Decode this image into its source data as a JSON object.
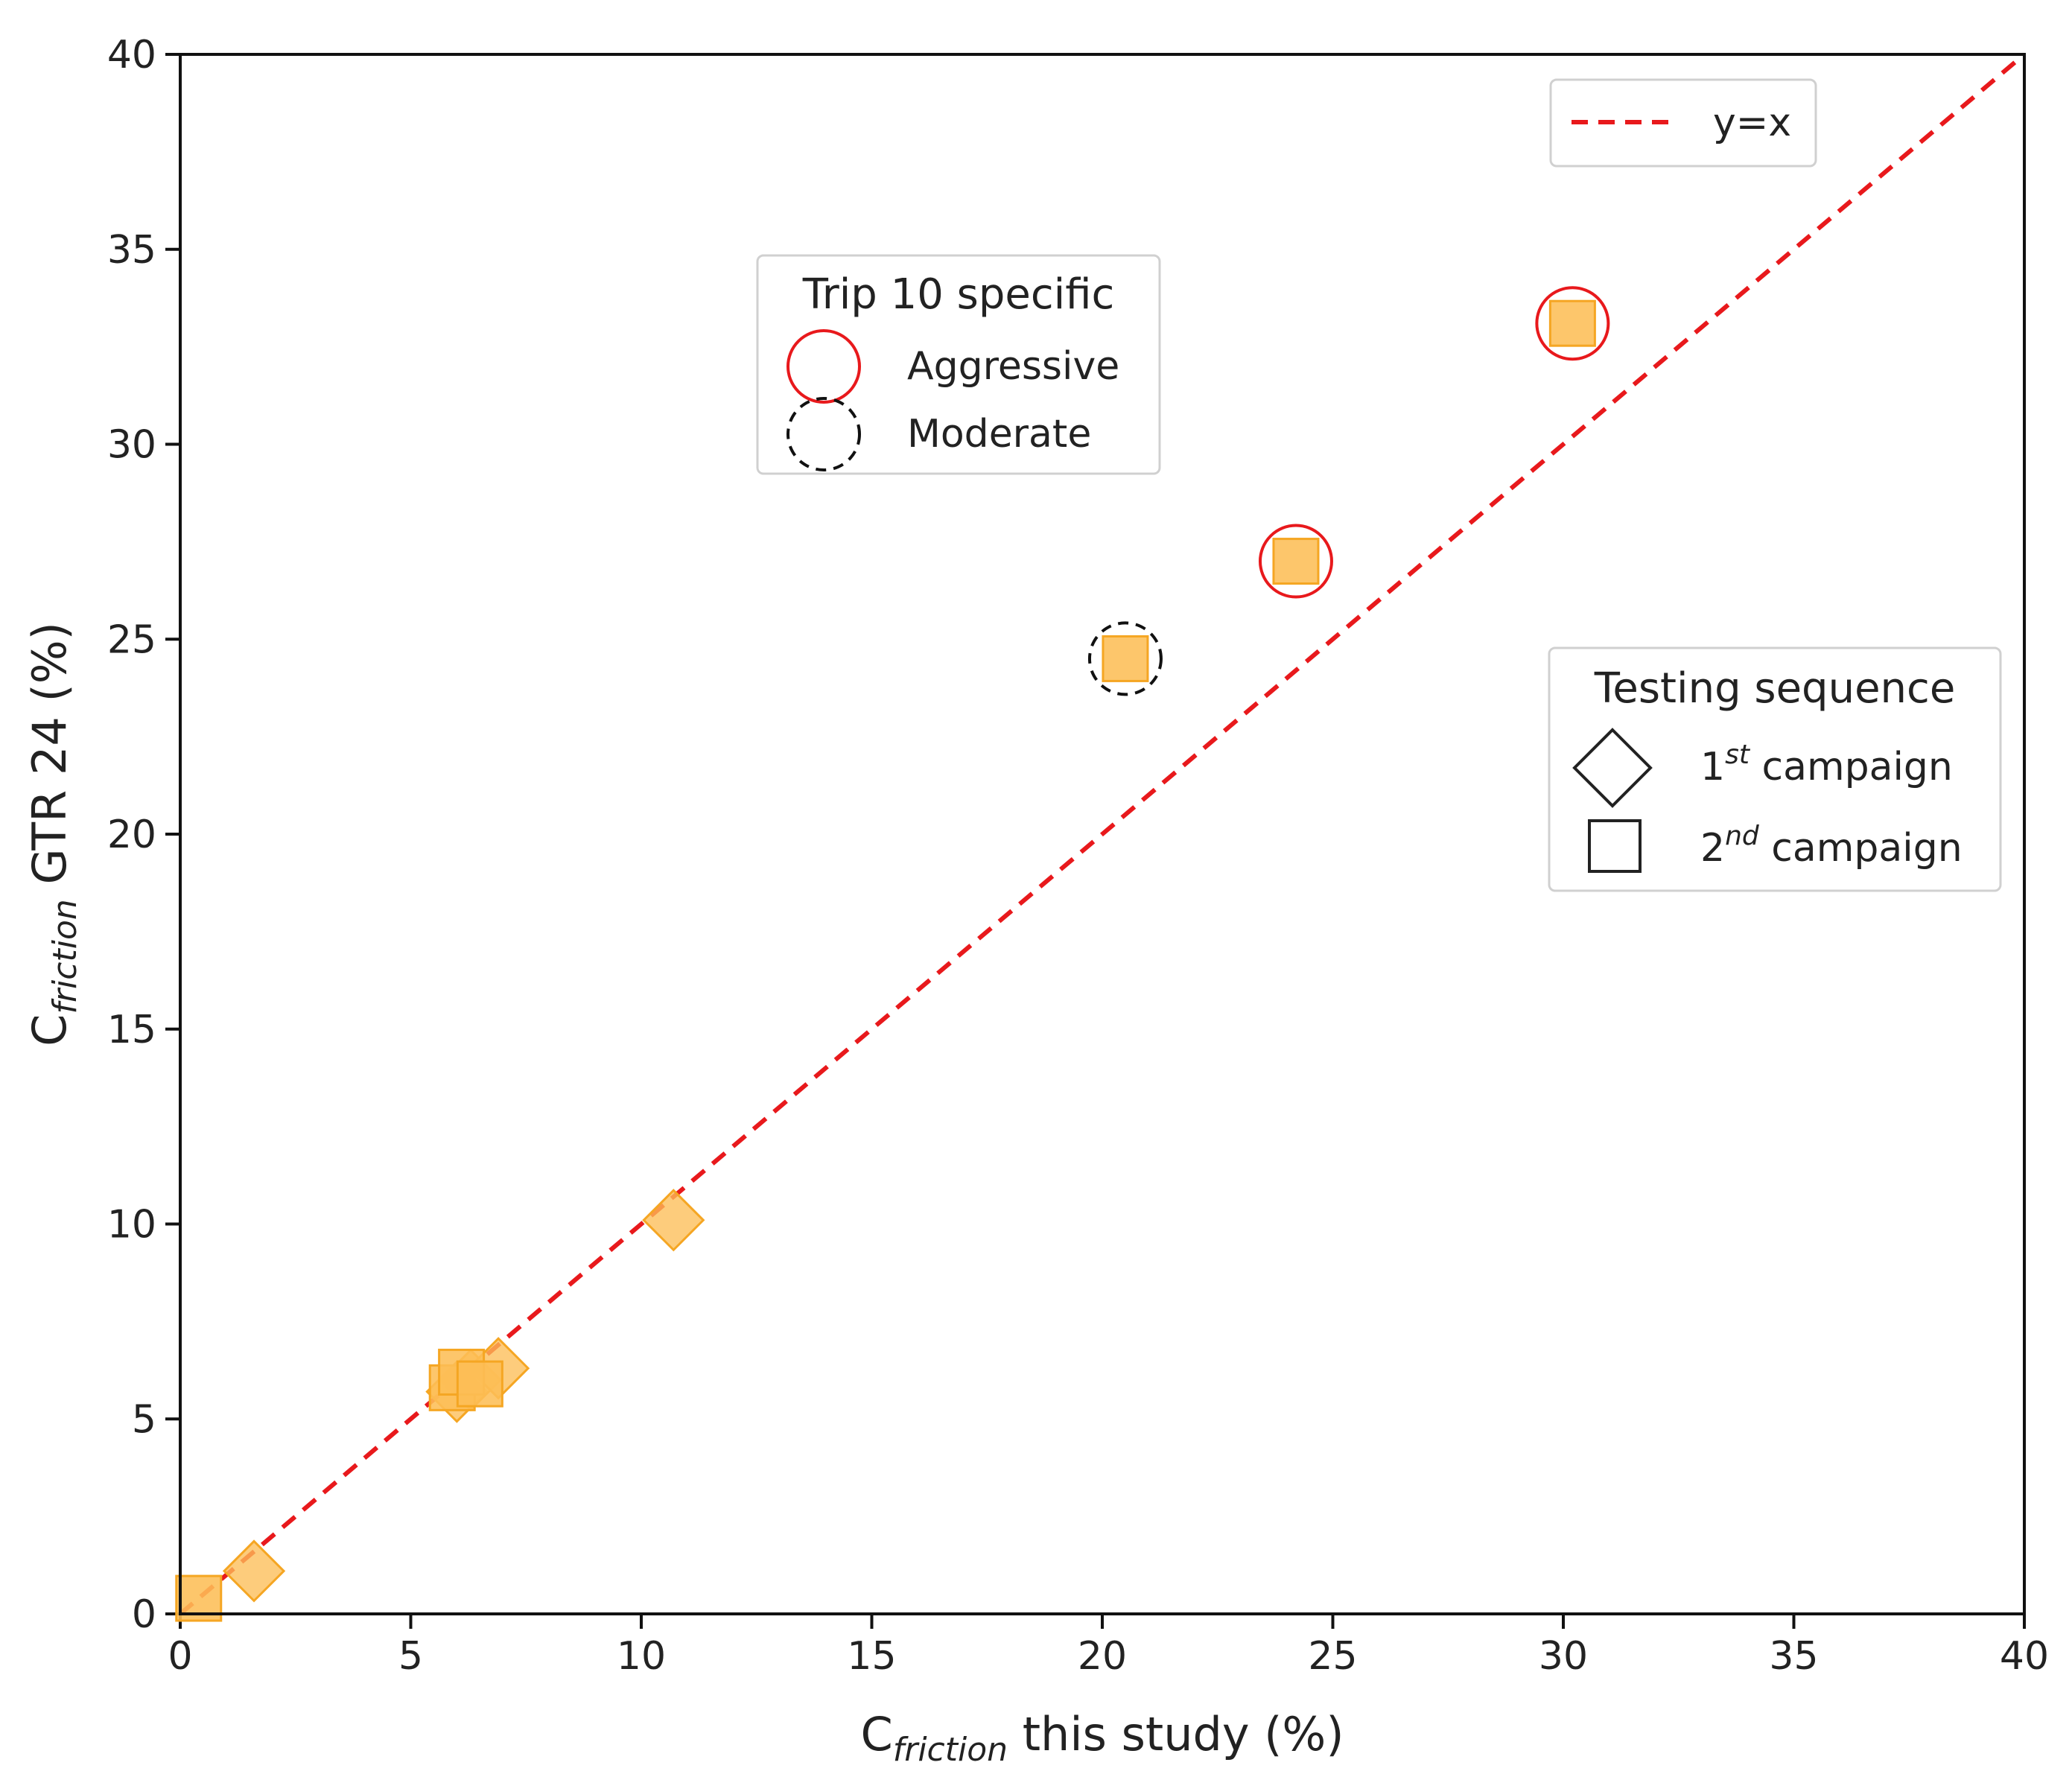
{
  "chart_data": {
    "type": "scatter",
    "xlabel": {
      "prefix": "C",
      "subscript": "friction",
      "suffix": " this study (%)"
    },
    "ylabel": {
      "prefix": "C",
      "subscript": "friction",
      "suffix": " GTR 24 (%)"
    },
    "xlim": [
      0,
      40
    ],
    "ylim": [
      0,
      40
    ],
    "xticks": [
      0,
      5,
      10,
      15,
      20,
      25,
      30,
      35,
      40
    ],
    "yticks": [
      0,
      5,
      10,
      15,
      20,
      25,
      30,
      35,
      40
    ],
    "grid": false,
    "marker_color": "#FDBE57",
    "marker_edge_color": "#F5A623",
    "reference_line": {
      "label": "y=x",
      "color": "#E8191C",
      "style": "dashed",
      "slope": 1,
      "intercept": 0
    },
    "series": [
      {
        "name": "1st campaign",
        "marker": "diamond",
        "points": [
          {
            "x": 1.6,
            "y": 1.1
          },
          {
            "x": 6.0,
            "y": 5.7
          },
          {
            "x": 6.3,
            "y": 6.0
          },
          {
            "x": 6.9,
            "y": 6.3
          },
          {
            "x": 10.7,
            "y": 10.1
          }
        ]
      },
      {
        "name": "2nd campaign",
        "marker": "square",
        "points": [
          {
            "x": 0.4,
            "y": 0.4
          },
          {
            "x": 5.9,
            "y": 5.8
          },
          {
            "x": 6.1,
            "y": 6.2
          },
          {
            "x": 6.5,
            "y": 5.9
          },
          {
            "x": 20.5,
            "y": 24.5,
            "trip10": "Moderate"
          },
          {
            "x": 24.2,
            "y": 27.0,
            "trip10": "Aggressive"
          },
          {
            "x": 30.2,
            "y": 33.1,
            "trip10": "Aggressive"
          }
        ]
      }
    ],
    "legends": {
      "line": {
        "label": "y=x",
        "placement": "top-right"
      },
      "trip10": {
        "title": "Trip 10 specific",
        "placement": "upper-center",
        "items": [
          {
            "label": "Aggressive",
            "style": "solid",
            "color": "#E8191C"
          },
          {
            "label": "Moderate",
            "style": "dashed",
            "color": "#111111"
          }
        ]
      },
      "sequence": {
        "title": "Testing sequence",
        "placement": "center-right",
        "items": [
          {
            "num": "1",
            "sup": "st",
            "text": " campaign",
            "marker": "diamond"
          },
          {
            "num": "2",
            "sup": "nd",
            "text": " campaign",
            "marker": "square"
          }
        ]
      }
    }
  }
}
